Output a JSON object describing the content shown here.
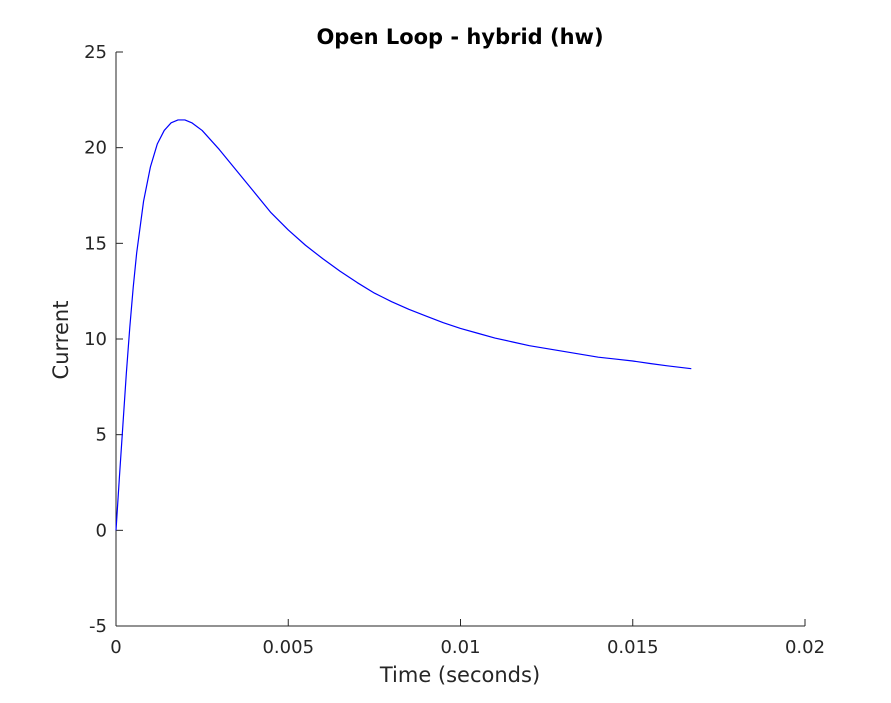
{
  "chart_data": {
    "type": "line",
    "title": "Open Loop - hybrid (hw)",
    "xlabel": "Time (seconds)",
    "ylabel": "Current",
    "xlim": [
      0,
      0.02
    ],
    "ylim": [
      -5,
      25
    ],
    "xticks": [
      0,
      0.005,
      0.01,
      0.015,
      0.02
    ],
    "xtick_labels": [
      "0",
      "0.005",
      "0.01",
      "0.015",
      "0.02"
    ],
    "yticks": [
      -5,
      0,
      5,
      10,
      15,
      20,
      25
    ],
    "ytick_labels": [
      "-5",
      "0",
      "5",
      "10",
      "15",
      "20",
      "25"
    ],
    "grid": false,
    "box": "left-bottom",
    "series": [
      {
        "color": "#0000ff",
        "x": [
          0,
          0.0001,
          0.0002,
          0.0003,
          0.0004,
          0.0005,
          0.0006,
          0.0008,
          0.001,
          0.0012,
          0.0014,
          0.0016,
          0.0018,
          0.002,
          0.0022,
          0.0025,
          0.003,
          0.0035,
          0.004,
          0.0045,
          0.005,
          0.0055,
          0.006,
          0.0065,
          0.007,
          0.0075,
          0.008,
          0.0085,
          0.009,
          0.0095,
          0.01,
          0.0105,
          0.011,
          0.0115,
          0.012,
          0.0125,
          0.013,
          0.0135,
          0.014,
          0.0145,
          0.015,
          0.0155,
          0.016,
          0.0167
        ],
        "y": [
          0,
          2.8,
          5.5,
          8.2,
          10.6,
          12.7,
          14.5,
          17.2,
          19.0,
          20.2,
          20.9,
          21.3,
          21.45,
          21.45,
          21.3,
          20.9,
          19.9,
          18.8,
          17.7,
          16.6,
          15.7,
          14.9,
          14.2,
          13.55,
          12.95,
          12.4,
          11.95,
          11.55,
          11.2,
          10.85,
          10.55,
          10.3,
          10.05,
          9.85,
          9.65,
          9.5,
          9.35,
          9.2,
          9.05,
          8.95,
          8.85,
          8.72,
          8.6,
          8.45
        ]
      }
    ]
  }
}
